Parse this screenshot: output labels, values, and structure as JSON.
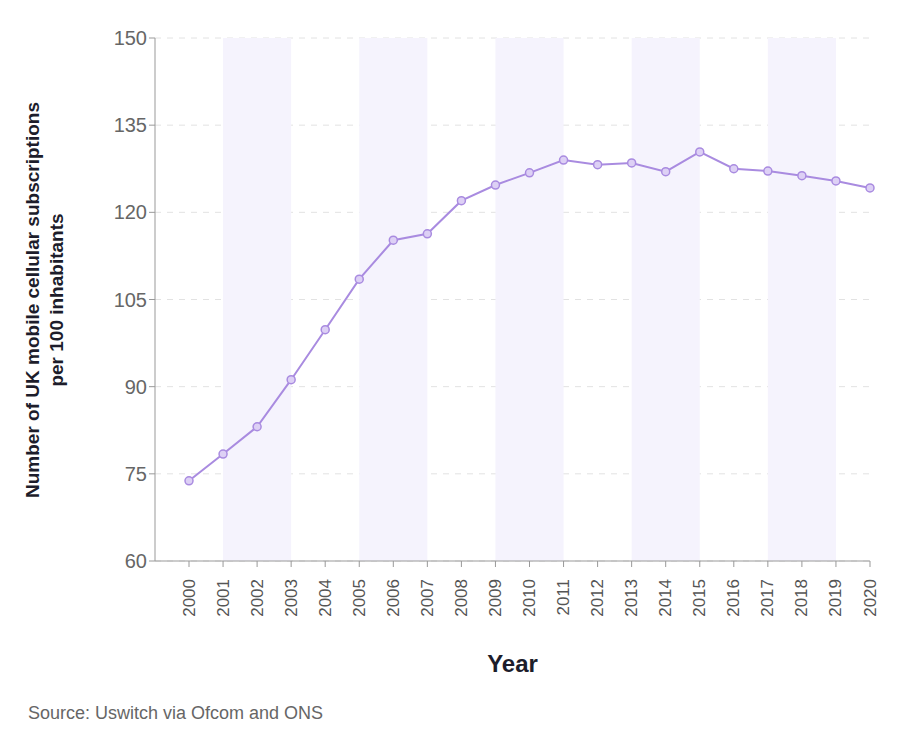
{
  "chart_data": {
    "type": "line",
    "x_label": "Year",
    "y_label": "Number of UK mobile cellular subscriptions per 100 inhabitants",
    "source": "Source: Uswitch via Ofcom and ONS",
    "categories": [
      "2000",
      "2001",
      "2002",
      "2003",
      "2004",
      "2005",
      "2006",
      "2007",
      "2008",
      "2009",
      "2010",
      "2011",
      "2012",
      "2013",
      "2014",
      "2015",
      "2016",
      "2017",
      "2018",
      "2019",
      "2020"
    ],
    "values": [
      73.8,
      78.4,
      83.1,
      91.2,
      99.8,
      108.5,
      115.2,
      116.3,
      122.0,
      124.7,
      126.8,
      129.0,
      128.2,
      128.5,
      127.0,
      130.4,
      127.5,
      127.1,
      126.3,
      125.4,
      124.2
    ],
    "color": "#a98be0",
    "marker": "circle",
    "ylim": [
      60,
      150
    ],
    "yticks": [
      60,
      75,
      90,
      105,
      120,
      135,
      150
    ],
    "grid": true
  }
}
